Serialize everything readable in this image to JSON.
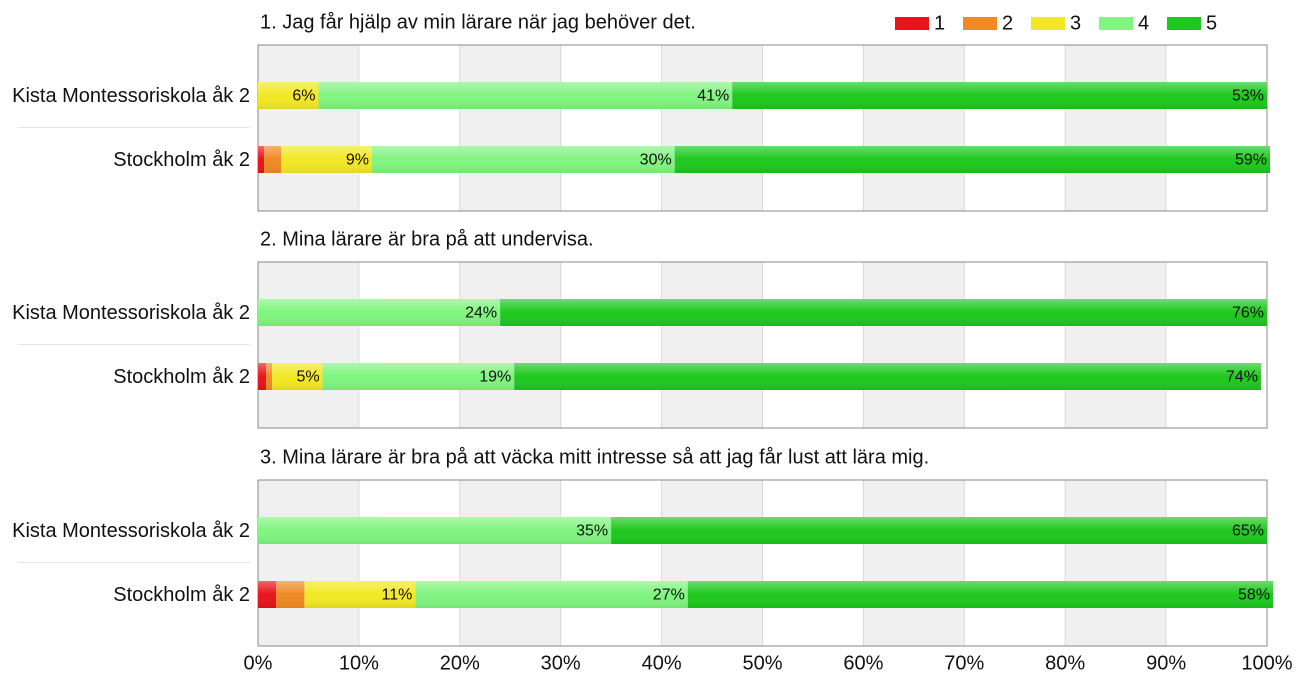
{
  "chart_data": [
    {
      "type": "bar",
      "orientation": "horizontal",
      "stacked": true,
      "title": "1. Jag får hjälp av min lärare när jag behöver det.",
      "categories": [
        "Kista Montessoriskola åk 2",
        "Stockholm åk 2"
      ],
      "legend": "top-right",
      "series": [
        {
          "name": "1",
          "color": "#e8141b",
          "values": [
            0,
            0.6
          ],
          "value_labels": [
            null,
            null
          ]
        },
        {
          "name": "2",
          "color": "#f08a24",
          "values": [
            0,
            1.7
          ],
          "value_labels": [
            null,
            null
          ]
        },
        {
          "name": "3",
          "color": "#f2e824",
          "values": [
            6,
            9
          ],
          "value_labels": [
            "6%",
            "9%"
          ]
        },
        {
          "name": "4",
          "color": "#80f580",
          "values": [
            41,
            30
          ],
          "value_labels": [
            "41%",
            "30%"
          ]
        },
        {
          "name": "5",
          "color": "#1ec81e",
          "values": [
            53,
            59
          ],
          "value_labels": [
            "53%",
            "59%"
          ]
        }
      ],
      "xlim": [
        0,
        100
      ]
    },
    {
      "type": "bar",
      "orientation": "horizontal",
      "stacked": true,
      "title": "2. Mina lärare är bra på att undervisa.",
      "categories": [
        "Kista Montessoriskola åk 2",
        "Stockholm åk 2"
      ],
      "series": [
        {
          "color": "#e8141b",
          "values": [
            0,
            0.8
          ],
          "value_labels": [
            null,
            null
          ]
        },
        {
          "color": "#f08a24",
          "values": [
            0,
            0.6
          ],
          "value_labels": [
            null,
            null
          ]
        },
        {
          "color": "#f2e824",
          "values": [
            0,
            5
          ],
          "value_labels": [
            null,
            "5%"
          ]
        },
        {
          "color": "#80f580",
          "values": [
            24,
            19
          ],
          "value_labels": [
            "24%",
            "19%"
          ]
        },
        {
          "color": "#1ec81e",
          "values": [
            76,
            74
          ],
          "value_labels": [
            "76%",
            "74%"
          ]
        }
      ],
      "xlim": [
        0,
        100
      ]
    },
    {
      "type": "bar",
      "orientation": "horizontal",
      "stacked": true,
      "title": "3. Mina lärare är bra på att väcka mitt intresse så att jag får lust att lära mig.",
      "categories": [
        "Kista Montessoriskola åk 2",
        "Stockholm åk 2"
      ],
      "series": [
        {
          "color": "#e8141b",
          "values": [
            0,
            1.8
          ],
          "value_labels": [
            null,
            null
          ]
        },
        {
          "color": "#f08a24",
          "values": [
            0,
            2.8
          ],
          "value_labels": [
            null,
            null
          ]
        },
        {
          "color": "#f2e824",
          "values": [
            0,
            11
          ],
          "value_labels": [
            null,
            "11%"
          ]
        },
        {
          "color": "#80f580",
          "values": [
            35,
            27
          ],
          "value_labels": [
            "35%",
            "27%"
          ]
        },
        {
          "color": "#1ec81e",
          "values": [
            65,
            58
          ],
          "value_labels": [
            "65%",
            "58%"
          ]
        }
      ],
      "xlim": [
        0,
        100
      ],
      "xticks": [
        {
          "value": 0,
          "label": "0%"
        },
        {
          "value": 10,
          "label": "10%"
        },
        {
          "value": 20,
          "label": "20%"
        },
        {
          "value": 30,
          "label": "30%"
        },
        {
          "value": 40,
          "label": "40%"
        },
        {
          "value": 50,
          "label": "50%"
        },
        {
          "value": 60,
          "label": "60%"
        },
        {
          "value": 70,
          "label": "70%"
        },
        {
          "value": 80,
          "label": "80%"
        },
        {
          "value": 90,
          "label": "90%"
        },
        {
          "value": 100,
          "label": "100%"
        }
      ]
    }
  ]
}
